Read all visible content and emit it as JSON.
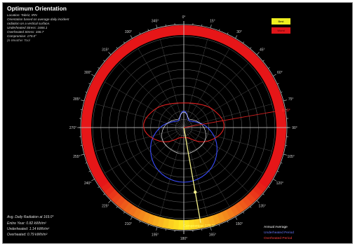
{
  "header": {
    "title": "Optimum Orientation",
    "location": "Location: Tabriz, IRN",
    "desc_line1": "Orientation based on average daily incident",
    "desc_line2": "radiation on a vertical surface.",
    "underheated": "Underheated Stress: 1666.1",
    "overheated": "Overheated Stress: 346.7",
    "compromise": "Compromise: 170.0°",
    "trailing": "(6-Weather Tool"
  },
  "bottom_left": {
    "avg_line": "Avg. Daily Radiation at 169.0°",
    "entire": "Entire Year: 0.82 kWh/m²",
    "underheated": "Underheated: 1.14 kWh/m²",
    "overheated": "Overheated: 0.79 kWh/m²"
  },
  "key": {
    "best": "Best",
    "worst": "Worst",
    "best_color": "#f0ef20",
    "worst_color": "#e0161a"
  },
  "legend": [
    {
      "label": "Annual Average",
      "color": "#ffffff"
    },
    {
      "label": "Underheated Period",
      "color": "#4a5aff"
    },
    {
      "label": "Overheated Period",
      "color": "#ff3030"
    }
  ],
  "chart_data": {
    "type": "polar",
    "angle_labels": [
      "0°",
      "15°",
      "30°",
      "45°",
      "60°",
      "75°",
      "90°",
      "105°",
      "120°",
      "135°",
      "150°",
      "165°",
      "180°",
      "195°",
      "210°",
      "225°",
      "240°",
      "255°",
      "270°",
      "285°",
      "300°",
      "315°",
      "330°",
      "345°"
    ],
    "direction_labels": {
      "north": "N",
      "south": "S",
      "east": "E",
      "west": "W"
    },
    "series": [
      {
        "name": "Underheated Period",
        "color": "#3a4cff",
        "r_by_30deg": [
          0.18,
          0.1,
          0.13,
          0.26,
          0.42,
          0.55,
          0.6,
          0.55,
          0.42,
          0.26,
          0.13,
          0.1
        ]
      },
      {
        "name": "Overheated Period",
        "color": "#e02020",
        "r_by_30deg": [
          0.27,
          0.3,
          0.38,
          0.44,
          0.3,
          0.14,
          0.11,
          0.14,
          0.3,
          0.44,
          0.38,
          0.3
        ]
      },
      {
        "name": "Annual Average",
        "color": "#ffffff",
        "r_by_30deg": [
          0.17,
          0.11,
          0.15,
          0.22,
          0.27,
          0.28,
          0.29,
          0.28,
          0.27,
          0.22,
          0.15,
          0.11
        ]
      }
    ],
    "annotations": [
      {
        "text": "Compromise: 170.0°",
        "angle_deg": 170.0
      },
      {
        "text": "80.0°",
        "angle_deg": 80.0
      }
    ],
    "ring_gradient": "yellow near 180° (best) to red elsewhere (worst)",
    "grid_rings": 11
  }
}
